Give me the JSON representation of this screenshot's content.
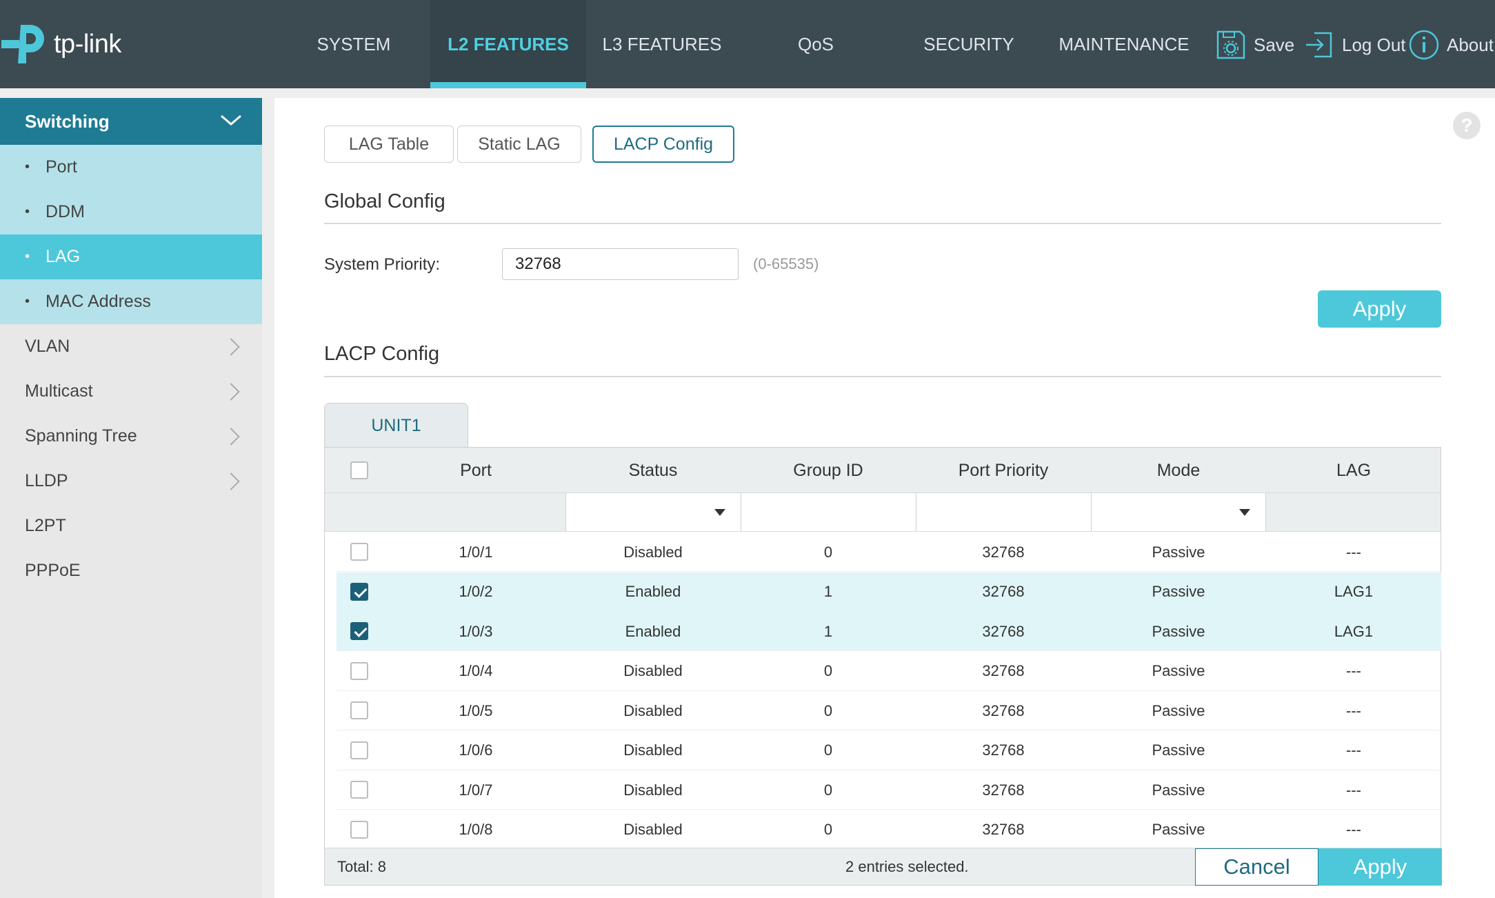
{
  "brand": {
    "name": "tp-link",
    "accent": "#4cc8da",
    "dark": "#3c4a52",
    "teal": "#1e7b93"
  },
  "nav": {
    "items": [
      "SYSTEM",
      "L2 FEATURES",
      "L3 FEATURES",
      "QoS",
      "SECURITY",
      "MAINTENANCE"
    ],
    "active": "L2 FEATURES",
    "save": "Save",
    "logout": "Log Out",
    "about": "About"
  },
  "sidebar": {
    "section": "Switching",
    "subitems": [
      "Port",
      "DDM",
      "LAG",
      "MAC Address"
    ],
    "active_sub": "LAG",
    "items": [
      "VLAN",
      "Multicast",
      "Spanning Tree",
      "LLDP",
      "L2PT",
      "PPPoE"
    ]
  },
  "tabs": [
    "LAG Table",
    "Static LAG",
    "LACP Config"
  ],
  "active_tab": "LACP Config",
  "help_icon": "?",
  "global": {
    "title": "Global Config",
    "priority_label": "System Priority:",
    "priority_value": "32768",
    "priority_range": "(0-65535)",
    "apply": "Apply"
  },
  "lacp": {
    "title": "LACP Config",
    "unit_tab": "UNIT1",
    "columns": [
      "Port",
      "Status",
      "Group ID",
      "Port Priority",
      "Mode",
      "LAG"
    ],
    "rows": [
      {
        "checked": false,
        "port": "1/0/1",
        "status": "Disabled",
        "group": "0",
        "priority": "32768",
        "mode": "Passive",
        "lag": "---"
      },
      {
        "checked": true,
        "port": "1/0/2",
        "status": "Enabled",
        "group": "1",
        "priority": "32768",
        "mode": "Passive",
        "lag": "LAG1"
      },
      {
        "checked": true,
        "port": "1/0/3",
        "status": "Enabled",
        "group": "1",
        "priority": "32768",
        "mode": "Passive",
        "lag": "LAG1"
      },
      {
        "checked": false,
        "port": "1/0/4",
        "status": "Disabled",
        "group": "0",
        "priority": "32768",
        "mode": "Passive",
        "lag": "---"
      },
      {
        "checked": false,
        "port": "1/0/5",
        "status": "Disabled",
        "group": "0",
        "priority": "32768",
        "mode": "Passive",
        "lag": "---"
      },
      {
        "checked": false,
        "port": "1/0/6",
        "status": "Disabled",
        "group": "0",
        "priority": "32768",
        "mode": "Passive",
        "lag": "---"
      },
      {
        "checked": false,
        "port": "1/0/7",
        "status": "Disabled",
        "group": "0",
        "priority": "32768",
        "mode": "Passive",
        "lag": "---"
      },
      {
        "checked": false,
        "port": "1/0/8",
        "status": "Disabled",
        "group": "0",
        "priority": "32768",
        "mode": "Passive",
        "lag": "---"
      }
    ],
    "total": "Total: 8",
    "selected": "2 entries selected.",
    "cancel": "Cancel",
    "apply": "Apply"
  }
}
